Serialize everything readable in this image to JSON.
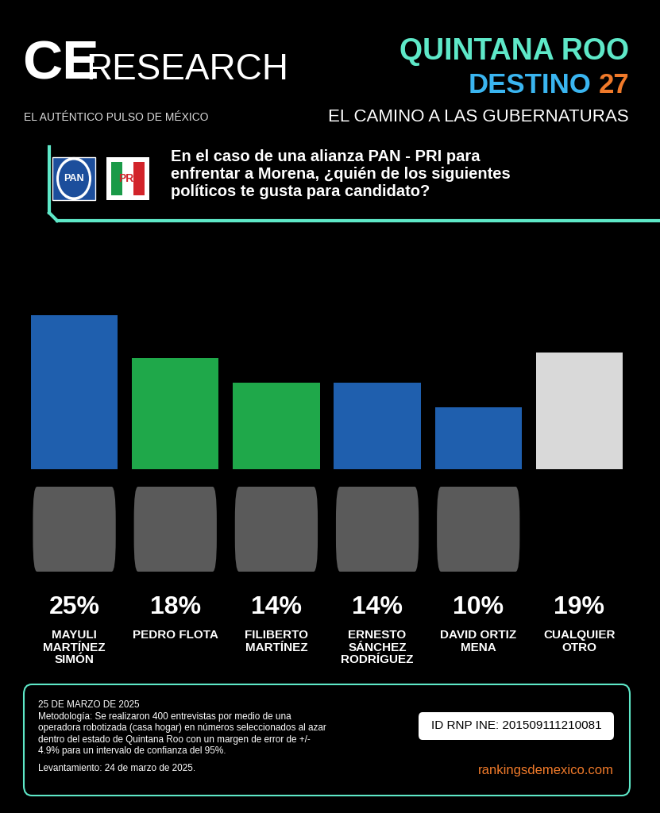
{
  "chart_data": {
    "type": "bar",
    "categories": [
      "MAYULI MARTÍNEZ SIMÓN",
      "PEDRO FLOTA",
      "FILIBERTO MARTÍNEZ",
      "ERNESTO SÁNCHEZ RODRÍGUEZ",
      "DAVID ORTIZ MENA",
      "CUALQUIER OTRO"
    ],
    "values": [
      25,
      18,
      14,
      14,
      10,
      19
    ],
    "value_labels": [
      "25%",
      "18%",
      "14%",
      "14%",
      "10%",
      "19%"
    ],
    "colors": [
      "#1f5fae",
      "#1fa84a",
      "#1fa84a",
      "#1f5fae",
      "#1f5fae",
      "#d9d9d9"
    ],
    "ylim": [
      0,
      25
    ],
    "yticks": [],
    "grid": false,
    "data_labels": true,
    "tick_labels": false
  },
  "header": {
    "logo_main": "CE",
    "logo_rest": "RESEARCH",
    "tagline": "EL AUTÉNTICO PULSO DE MÉXICO",
    "state": "QUINTANA ROO",
    "destino": "DESTINO",
    "year": "27",
    "subtitle": "EL CAMINO A LAS GUBERNATURAS"
  },
  "question": {
    "logos": [
      "PAN",
      "PRI"
    ],
    "text": "En el caso de una alianza PAN - PRI para enfrentar a Morena, ¿quién de los siguientes políticos te gusta para candidato?"
  },
  "footer": {
    "date": "25 DE MARZO DE 2025",
    "methodology": "Metodología: Se realizaron 400 entrevistas por medio de una operadora robotizada (casa hogar) en números seleccionados al azar dentro del estado de Quintana Roo con un margen de error de +/- 4.9% para un intervalo de confianza del 95%.",
    "fieldwork": "Levantamiento: 24 de marzo de 2025.",
    "id": "ID RNP INE: 201509111210081",
    "website": "rankingsdemexico.com"
  }
}
